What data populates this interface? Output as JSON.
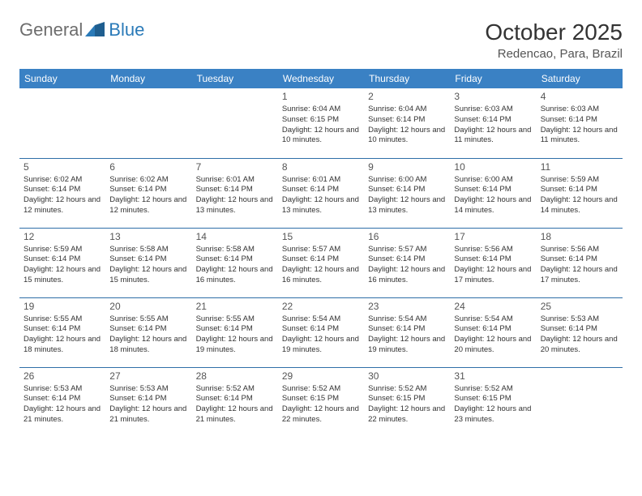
{
  "brand": {
    "part1": "General",
    "part2": "Blue"
  },
  "title": "October 2025",
  "location": "Redencao, Para, Brazil",
  "colors": {
    "header_bg": "#3a81c4",
    "header_text": "#ffffff",
    "rule": "#2f6fa8",
    "brand_gray": "#6d6d6d",
    "brand_blue": "#2a7ab8",
    "text": "#333333",
    "bg": "#ffffff"
  },
  "weekdays": [
    "Sunday",
    "Monday",
    "Tuesday",
    "Wednesday",
    "Thursday",
    "Friday",
    "Saturday"
  ],
  "weeks": [
    [
      null,
      null,
      null,
      {
        "d": "1",
        "sr": "6:04 AM",
        "ss": "6:15 PM",
        "dl": "12 hours and 10 minutes."
      },
      {
        "d": "2",
        "sr": "6:04 AM",
        "ss": "6:14 PM",
        "dl": "12 hours and 10 minutes."
      },
      {
        "d": "3",
        "sr": "6:03 AM",
        "ss": "6:14 PM",
        "dl": "12 hours and 11 minutes."
      },
      {
        "d": "4",
        "sr": "6:03 AM",
        "ss": "6:14 PM",
        "dl": "12 hours and 11 minutes."
      }
    ],
    [
      {
        "d": "5",
        "sr": "6:02 AM",
        "ss": "6:14 PM",
        "dl": "12 hours and 12 minutes."
      },
      {
        "d": "6",
        "sr": "6:02 AM",
        "ss": "6:14 PM",
        "dl": "12 hours and 12 minutes."
      },
      {
        "d": "7",
        "sr": "6:01 AM",
        "ss": "6:14 PM",
        "dl": "12 hours and 13 minutes."
      },
      {
        "d": "8",
        "sr": "6:01 AM",
        "ss": "6:14 PM",
        "dl": "12 hours and 13 minutes."
      },
      {
        "d": "9",
        "sr": "6:00 AM",
        "ss": "6:14 PM",
        "dl": "12 hours and 13 minutes."
      },
      {
        "d": "10",
        "sr": "6:00 AM",
        "ss": "6:14 PM",
        "dl": "12 hours and 14 minutes."
      },
      {
        "d": "11",
        "sr": "5:59 AM",
        "ss": "6:14 PM",
        "dl": "12 hours and 14 minutes."
      }
    ],
    [
      {
        "d": "12",
        "sr": "5:59 AM",
        "ss": "6:14 PM",
        "dl": "12 hours and 15 minutes."
      },
      {
        "d": "13",
        "sr": "5:58 AM",
        "ss": "6:14 PM",
        "dl": "12 hours and 15 minutes."
      },
      {
        "d": "14",
        "sr": "5:58 AM",
        "ss": "6:14 PM",
        "dl": "12 hours and 16 minutes."
      },
      {
        "d": "15",
        "sr": "5:57 AM",
        "ss": "6:14 PM",
        "dl": "12 hours and 16 minutes."
      },
      {
        "d": "16",
        "sr": "5:57 AM",
        "ss": "6:14 PM",
        "dl": "12 hours and 16 minutes."
      },
      {
        "d": "17",
        "sr": "5:56 AM",
        "ss": "6:14 PM",
        "dl": "12 hours and 17 minutes."
      },
      {
        "d": "18",
        "sr": "5:56 AM",
        "ss": "6:14 PM",
        "dl": "12 hours and 17 minutes."
      }
    ],
    [
      {
        "d": "19",
        "sr": "5:55 AM",
        "ss": "6:14 PM",
        "dl": "12 hours and 18 minutes."
      },
      {
        "d": "20",
        "sr": "5:55 AM",
        "ss": "6:14 PM",
        "dl": "12 hours and 18 minutes."
      },
      {
        "d": "21",
        "sr": "5:55 AM",
        "ss": "6:14 PM",
        "dl": "12 hours and 19 minutes."
      },
      {
        "d": "22",
        "sr": "5:54 AM",
        "ss": "6:14 PM",
        "dl": "12 hours and 19 minutes."
      },
      {
        "d": "23",
        "sr": "5:54 AM",
        "ss": "6:14 PM",
        "dl": "12 hours and 19 minutes."
      },
      {
        "d": "24",
        "sr": "5:54 AM",
        "ss": "6:14 PM",
        "dl": "12 hours and 20 minutes."
      },
      {
        "d": "25",
        "sr": "5:53 AM",
        "ss": "6:14 PM",
        "dl": "12 hours and 20 minutes."
      }
    ],
    [
      {
        "d": "26",
        "sr": "5:53 AM",
        "ss": "6:14 PM",
        "dl": "12 hours and 21 minutes."
      },
      {
        "d": "27",
        "sr": "5:53 AM",
        "ss": "6:14 PM",
        "dl": "12 hours and 21 minutes."
      },
      {
        "d": "28",
        "sr": "5:52 AM",
        "ss": "6:14 PM",
        "dl": "12 hours and 21 minutes."
      },
      {
        "d": "29",
        "sr": "5:52 AM",
        "ss": "6:15 PM",
        "dl": "12 hours and 22 minutes."
      },
      {
        "d": "30",
        "sr": "5:52 AM",
        "ss": "6:15 PM",
        "dl": "12 hours and 22 minutes."
      },
      {
        "d": "31",
        "sr": "5:52 AM",
        "ss": "6:15 PM",
        "dl": "12 hours and 23 minutes."
      },
      null
    ]
  ],
  "labels": {
    "sunrise": "Sunrise:",
    "sunset": "Sunset:",
    "daylight": "Daylight:"
  }
}
